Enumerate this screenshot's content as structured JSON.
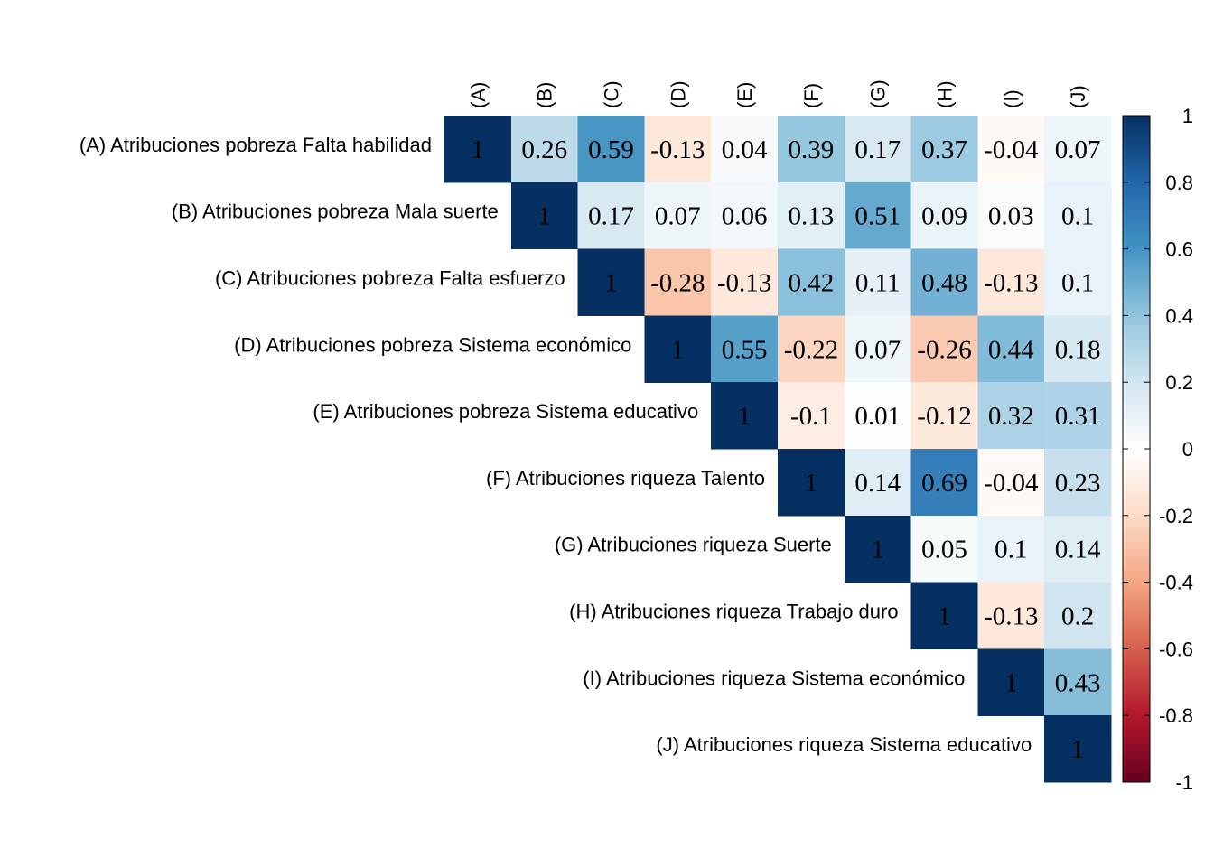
{
  "chart_data": {
    "type": "heatmap",
    "variant": "upper-triangular correlation matrix",
    "columns": [
      "(A)",
      "(B)",
      "(C)",
      "(D)",
      "(E)",
      "(F)",
      "(G)",
      "(H)",
      "(I)",
      "(J)"
    ],
    "rows": [
      "(A) Atribuciones pobreza Falta habilidad",
      "(B) Atribuciones pobreza Mala suerte",
      "(C) Atribuciones pobreza Falta esfuerzo",
      "(D) Atribuciones pobreza Sistema económico",
      "(E) Atribuciones pobreza Sistema educativo",
      "(F) Atribuciones riqueza Talento",
      "(G) Atribuciones riqueza Suerte",
      "(H) Atribuciones riqueza Trabajo duro",
      "(I) Atribuciones riqueza Sistema económico",
      "(J) Atribuciones riqueza Sistema educativo"
    ],
    "values": [
      [
        1,
        0.26,
        0.59,
        -0.13,
        0.04,
        0.39,
        0.17,
        0.37,
        -0.04,
        0.07
      ],
      [
        null,
        1,
        0.17,
        0.07,
        0.06,
        0.13,
        0.51,
        0.09,
        0.03,
        0.1
      ],
      [
        null,
        null,
        1,
        -0.28,
        -0.13,
        0.42,
        0.11,
        0.48,
        -0.13,
        0.1
      ],
      [
        null,
        null,
        null,
        1,
        0.55,
        -0.22,
        0.07,
        -0.26,
        0.44,
        0.18
      ],
      [
        null,
        null,
        null,
        null,
        1,
        -0.1,
        0.01,
        -0.12,
        0.32,
        0.31
      ],
      [
        null,
        null,
        null,
        null,
        null,
        1,
        0.14,
        0.69,
        -0.04,
        0.23
      ],
      [
        null,
        null,
        null,
        null,
        null,
        null,
        1,
        0.05,
        0.1,
        0.14
      ],
      [
        null,
        null,
        null,
        null,
        null,
        null,
        null,
        1,
        -0.13,
        0.2
      ],
      [
        null,
        null,
        null,
        null,
        null,
        null,
        null,
        null,
        1,
        0.43
      ],
      [
        null,
        null,
        null,
        null,
        null,
        null,
        null,
        null,
        null,
        1
      ]
    ],
    "color_scale": {
      "range": [
        -1,
        1
      ],
      "ticks": [
        "1",
        "0.8",
        "0.6",
        "0.4",
        "0.2",
        "0",
        "-0.2",
        "-0.4",
        "-0.6",
        "-0.8",
        "-1"
      ],
      "colors": [
        "#67001F",
        "#B2182B",
        "#D6604D",
        "#F4A582",
        "#FDDBC7",
        "#FFFFFF",
        "#D1E5F0",
        "#92C5DE",
        "#4393C3",
        "#2166AC",
        "#053061"
      ]
    },
    "legend_position": "right"
  }
}
